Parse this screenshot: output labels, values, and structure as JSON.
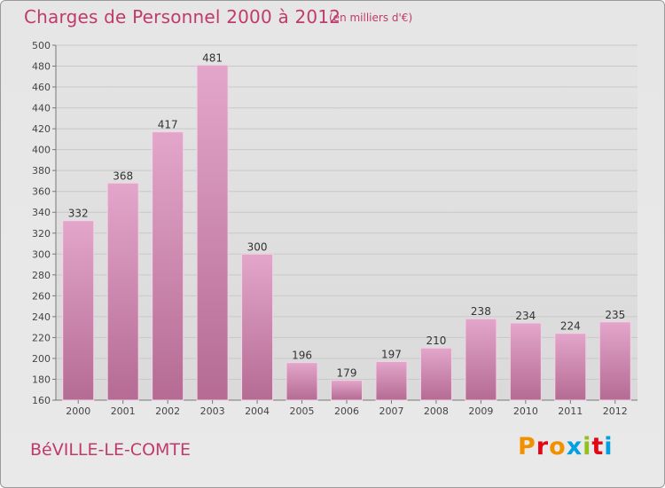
{
  "chart_data": {
    "type": "bar",
    "title": "Charges de Personnel 2000 à 2012",
    "subtitle": "(en milliers d'€)",
    "categories": [
      "2000",
      "2001",
      "2002",
      "2003",
      "2004",
      "2005",
      "2006",
      "2007",
      "2008",
      "2009",
      "2010",
      "2011",
      "2012"
    ],
    "values": [
      332,
      368,
      417,
      481,
      300,
      196,
      179,
      197,
      210,
      238,
      234,
      224,
      235
    ],
    "ylim": [
      160,
      500
    ],
    "yticks": [
      160,
      180,
      200,
      220,
      240,
      260,
      280,
      300,
      320,
      340,
      360,
      380,
      400,
      420,
      440,
      460,
      480,
      500
    ],
    "grid": true,
    "bar_color": "#d88fb8",
    "bar_color_dark": "#b46a92"
  },
  "footer": {
    "commune": "BéVILLE-LE-COMTE",
    "brand": "Proxiti",
    "brand_colors": [
      "#f29100",
      "#e30613",
      "#f29100",
      "#00a0e3",
      "#93c01f",
      "#e30613",
      "#00a0e3"
    ]
  },
  "colors": {
    "accent": "#c03a6b",
    "background": "#e8e8e8"
  }
}
